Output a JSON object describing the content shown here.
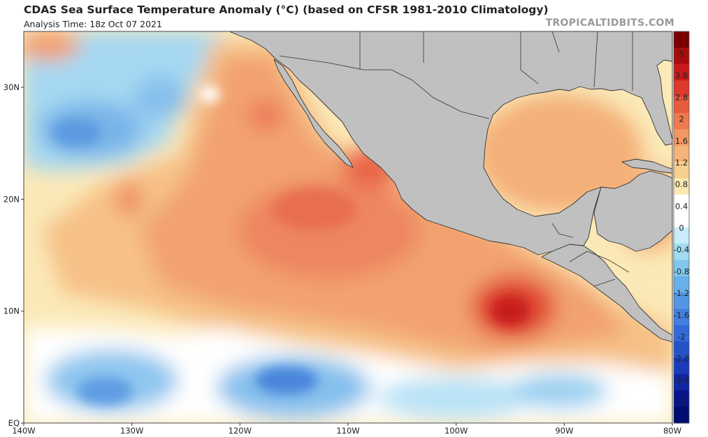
{
  "header": {
    "title": "CDAS Sea Surface Temperature Anomaly (°C) (based on CFSR 1981-2010 Climatology)",
    "subtitle": "Analysis Time: 18z Oct 07 2021",
    "brand": "TROPICALTIDBITS.COM"
  },
  "map": {
    "lon_range": [
      -140,
      -80
    ],
    "lat_range": [
      0,
      35
    ],
    "land_color": "#c0c0c0",
    "border_color": "#333333",
    "x_ticks": [
      {
        "value": -140,
        "label": "140W"
      },
      {
        "value": -130,
        "label": "130W"
      },
      {
        "value": -120,
        "label": "120W"
      },
      {
        "value": -110,
        "label": "110W"
      },
      {
        "value": -100,
        "label": "100W"
      },
      {
        "value": -90,
        "label": "90W"
      },
      {
        "value": -80,
        "label": "80W"
      }
    ],
    "y_ticks": [
      {
        "value": 0,
        "label": "EQ"
      },
      {
        "value": 10,
        "label": "10N"
      },
      {
        "value": 20,
        "label": "20N"
      },
      {
        "value": 30,
        "label": "30N"
      }
    ]
  },
  "colorbar": {
    "labels": [
      "5",
      "3.6",
      "2.8",
      "2",
      "1.6",
      "1.2",
      "0.8",
      "0.4",
      "0",
      "-0.4",
      "-0.8",
      "-1.2",
      "-1.6",
      "-2",
      "-2.8",
      "-3.6",
      "-5"
    ],
    "colors": [
      "#7a0000",
      "#a80c0c",
      "#c81a1a",
      "#dc3a2a",
      "#e85a3c",
      "#ee7b50",
      "#f39862",
      "#f5b478",
      "#f7cf8f",
      "#fae8b2",
      "#ffffff",
      "#ffffff",
      "#c8ecf9",
      "#a2dcf3",
      "#82c8ee",
      "#68b0ea",
      "#5496e3",
      "#4280de",
      "#346ad8",
      "#2652c8",
      "#1a3ab8",
      "#1026a2",
      "#081488",
      "#000c70"
    ]
  }
}
